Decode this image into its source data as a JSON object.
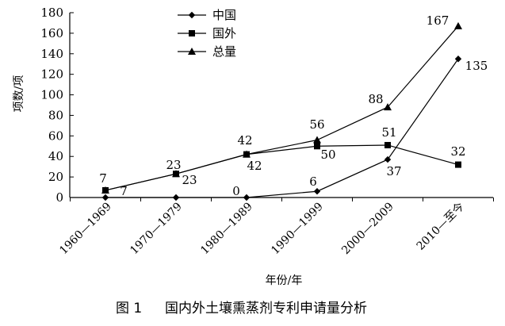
{
  "chart_data": {
    "type": "line",
    "title": "",
    "caption_prefix": "图 1",
    "caption": "国内外土壤熏蒸剂专利申请量分析",
    "xlabel": "年份/年",
    "ylabel": "项数/项",
    "ylim": [
      0,
      180
    ],
    "yticks": [
      0,
      20,
      40,
      60,
      80,
      100,
      120,
      140,
      160,
      180
    ],
    "grid": false,
    "legend_position": "top",
    "categories": [
      "1960—1969",
      "1970—1979",
      "1980—1989",
      "1990—1999",
      "2000—2009",
      "2010—至今"
    ],
    "series": [
      {
        "name": "中国",
        "marker": "diamond",
        "values": [
          0,
          0,
          0,
          6,
          37,
          135
        ],
        "labels": [
          "",
          "",
          "0",
          "6",
          "37",
          "135"
        ]
      },
      {
        "name": "国外",
        "marker": "square",
        "values": [
          7,
          23,
          42,
          50,
          51,
          32
        ],
        "labels": [
          "7",
          "23",
          "42",
          "50",
          "51",
          "32"
        ]
      },
      {
        "name": "总量",
        "marker": "triangle",
        "values": [
          7,
          23,
          42,
          56,
          88,
          167
        ],
        "labels": [
          "7",
          "23",
          "42",
          "56",
          "88",
          "167"
        ]
      }
    ]
  }
}
